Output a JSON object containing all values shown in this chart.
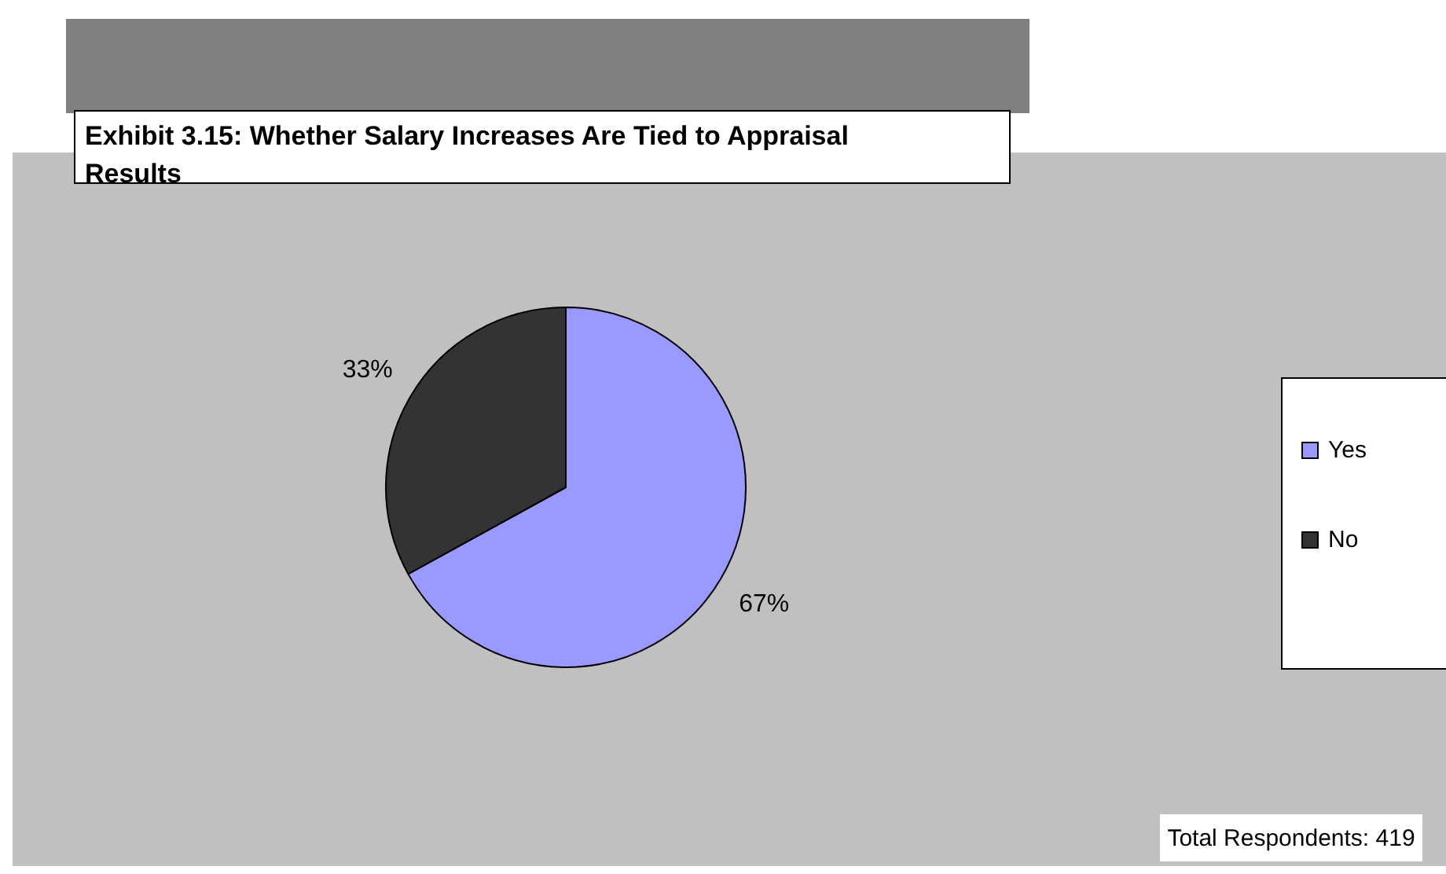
{
  "chart_data": {
    "type": "pie",
    "title": "Exhibit 3.15: Whether Salary Increases Are Tied to Appraisal Results",
    "categories": [
      "Yes",
      "No"
    ],
    "values": [
      67,
      33
    ],
    "colors": [
      "#9999ff",
      "#333333"
    ],
    "value_labels": [
      "67%",
      "33%"
    ],
    "legend": "right",
    "annotations": [
      "Total Respondents: 419"
    ]
  }
}
